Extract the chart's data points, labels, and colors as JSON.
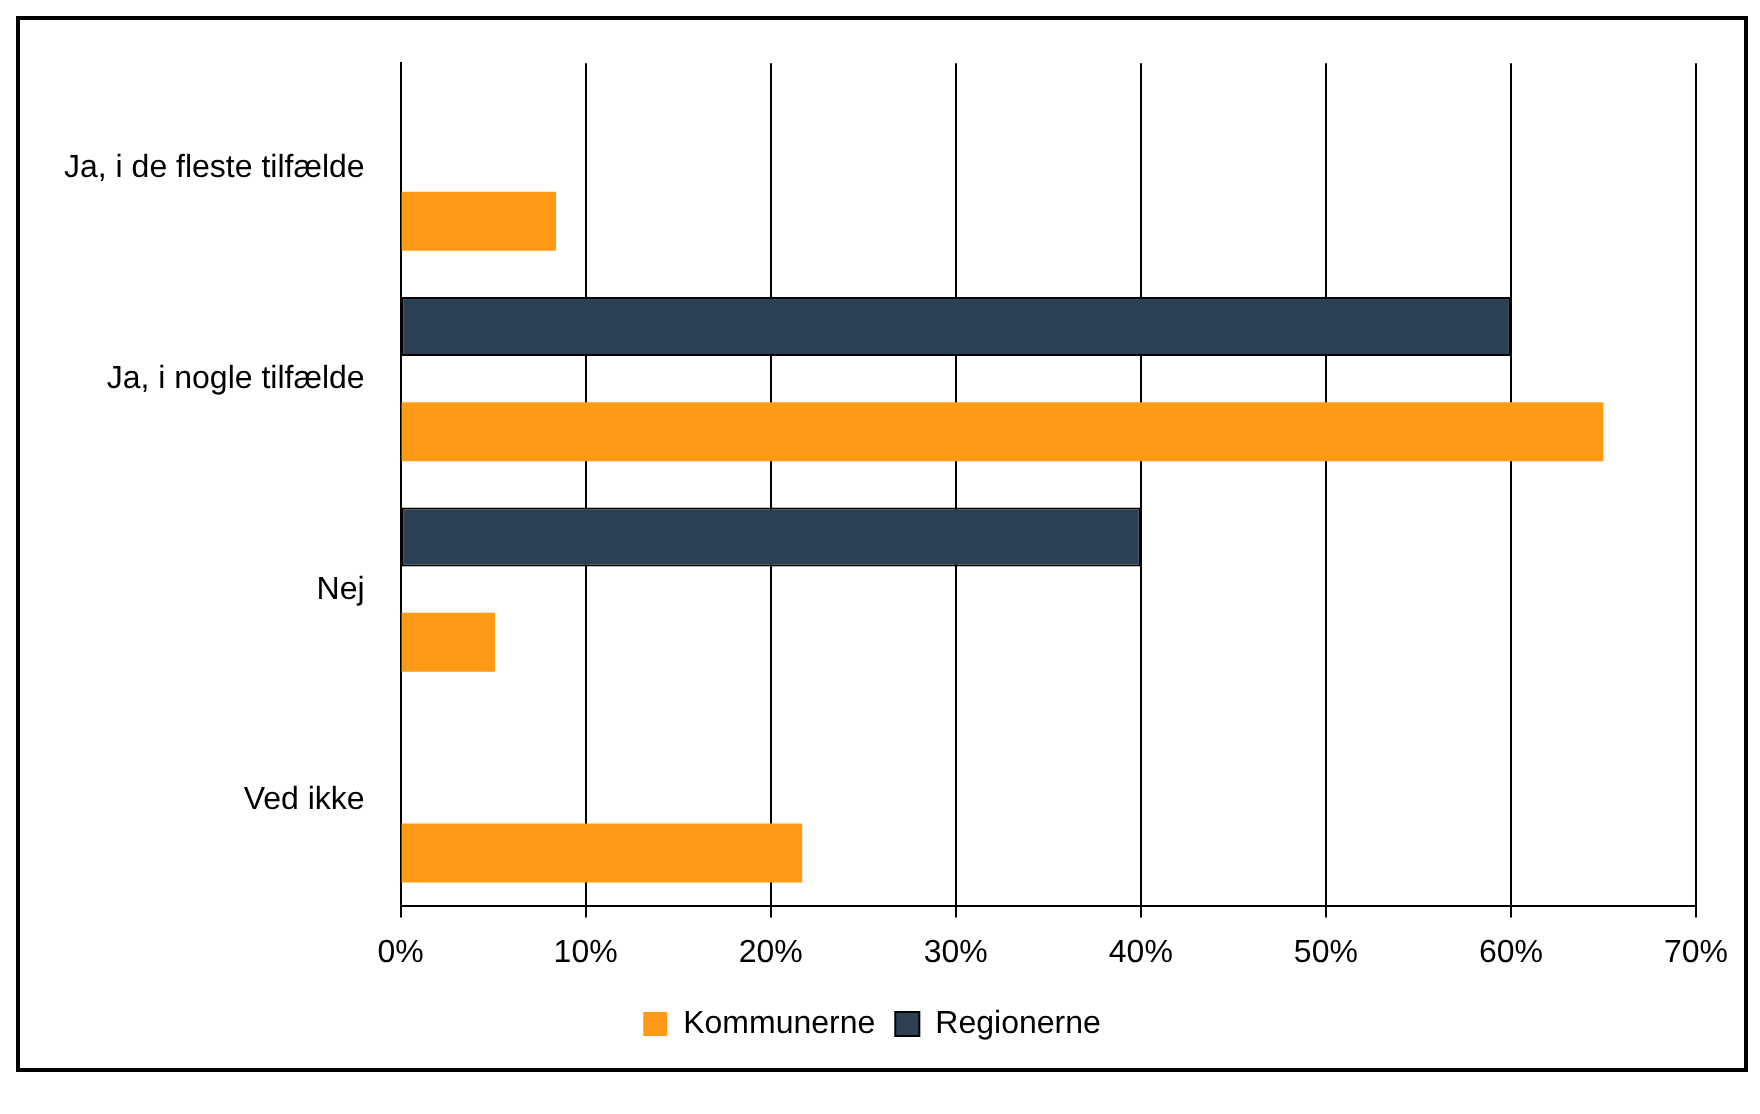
{
  "chart_data": {
    "type": "bar",
    "orientation": "horizontal",
    "categories": [
      "Ja, i de fleste tilfælde",
      "Ja, i nogle tilfælde",
      "Nej",
      "Ved ikke"
    ],
    "series": [
      {
        "name": "Kommunerne",
        "color": "#ff9a17",
        "values": [
          8.4,
          65,
          5.1,
          21.7
        ]
      },
      {
        "name": "Regionerne",
        "color": "#2b4153",
        "values": [
          0,
          60,
          40,
          0
        ]
      }
    ],
    "xlim": [
      0,
      70
    ],
    "xticks": [
      {
        "value": 0,
        "label": "0%"
      },
      {
        "value": 10,
        "label": "10%"
      },
      {
        "value": 20,
        "label": "20%"
      },
      {
        "value": 30,
        "label": "30%"
      },
      {
        "value": 40,
        "label": "40%"
      },
      {
        "value": 50,
        "label": "50%"
      },
      {
        "value": 60,
        "label": "60%"
      },
      {
        "value": 70,
        "label": "70%"
      }
    ],
    "grid": "x",
    "legend": "bottom"
  }
}
